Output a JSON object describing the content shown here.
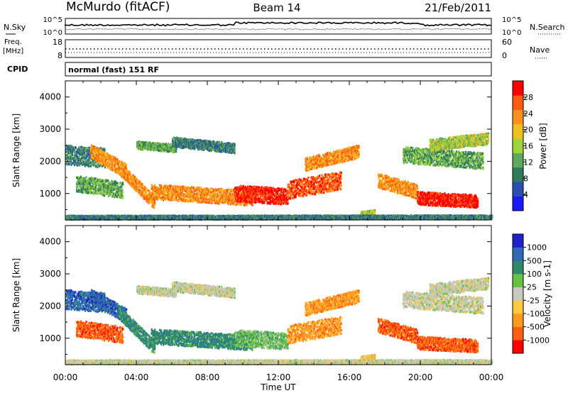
{
  "header": {
    "station": "McMurdo (fitACF)",
    "beam": "Beam 14",
    "date": "21/Feb/2011"
  },
  "left_labels": {
    "nsky": "N.Sky",
    "freq_line1": "Freq.",
    "freq_line2": "[MHz]",
    "cpid": "CPID"
  },
  "right_labels": {
    "nsearch": "N.Search",
    "nave": "Nave"
  },
  "strip_ticks": {
    "noise_left_top": "10^5",
    "noise_left_bottom": "10^0",
    "noise_right_top": "10^5",
    "noise_right_bottom": "10^0",
    "freq_left_top": "18",
    "freq_left_bottom": "8",
    "nave_right_top": "60",
    "nave_right_bottom": "0"
  },
  "cpid_text": "normal (fast) 151 RF",
  "colors": {
    "power_scale": [
      "#1a1aff",
      "#2b4fb0",
      "#2f7a5a",
      "#5fa85f",
      "#9ed53a",
      "#f0c020",
      "#ff9020",
      "#ff5a10",
      "#ff0000"
    ],
    "velocity_scale": [
      "#ff0000",
      "#ff6010",
      "#ff9a20",
      "#ffc840",
      "#c8c8c0",
      "#66c244",
      "#2f8a6a",
      "#2e6ab8",
      "#2020cc"
    ]
  },
  "chart_data": [
    {
      "type": "heatmap",
      "title": "Power",
      "ylabel": "Slant Range [km]",
      "ylim": [
        180,
        4500
      ],
      "yticks": [
        "1000",
        "2000",
        "3000",
        "4000"
      ],
      "xticks": [
        "00:00",
        "04:00",
        "08:00",
        "12:00",
        "16:00",
        "20:00",
        "00:00"
      ],
      "xlim_hours": [
        0,
        24
      ],
      "colorbar": {
        "label": "Power [dB]",
        "ticks": [
          "4",
          "8",
          "12",
          "16",
          "20",
          "24",
          "28"
        ],
        "range": [
          0,
          30
        ]
      }
    },
    {
      "type": "heatmap",
      "title": "Velocity",
      "ylabel": "Slant Range [km]",
      "xlabel": "Time UT",
      "ylim": [
        180,
        4500
      ],
      "yticks": [
        "1000",
        "2000",
        "3000",
        "4000"
      ],
      "xticks": [
        "00:00",
        "04:00",
        "08:00",
        "12:00",
        "16:00",
        "20:00",
        "00:00"
      ],
      "xlim_hours": [
        0,
        24
      ],
      "colorbar": {
        "label": "Velocity [m s-1]",
        "ticks": [
          "1000",
          "500",
          "100",
          "25",
          "-25",
          "-100",
          "-500",
          "-1000"
        ]
      }
    }
  ]
}
